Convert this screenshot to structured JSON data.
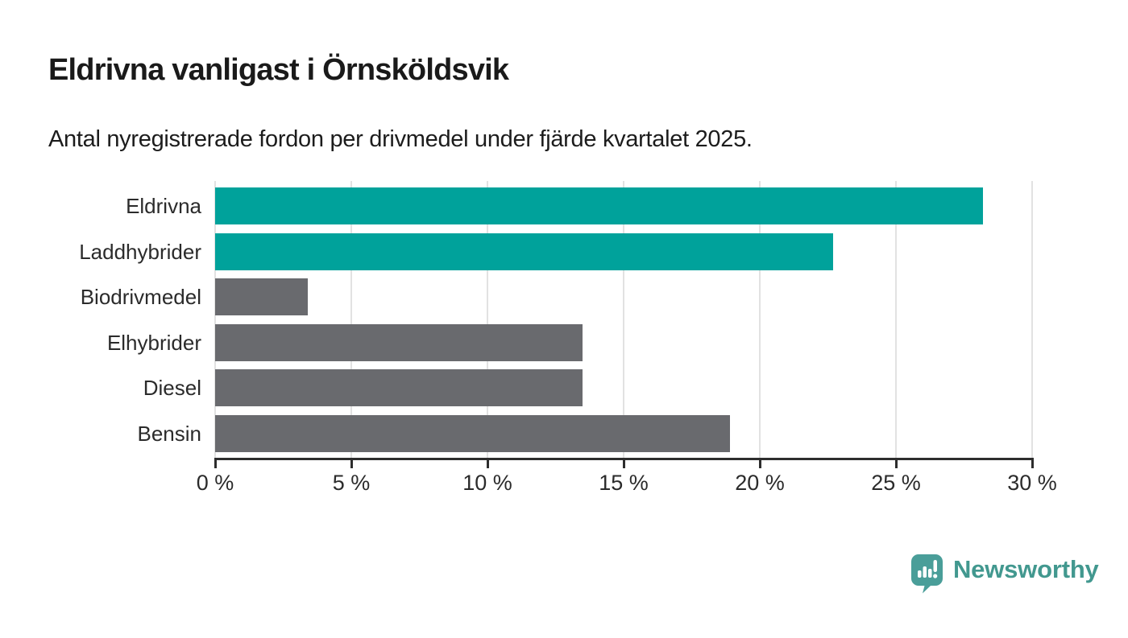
{
  "header": {
    "title": "Eldrivna vanligast i Örnsköldsvik",
    "subtitle": "Antal nyregistrerade fordon per drivmedel under fjärde kvartalet 2025."
  },
  "chart_data": {
    "type": "bar",
    "orientation": "horizontal",
    "title": "Eldrivna vanligast i Örnsköldsvik",
    "subtitle": "Antal nyregistrerade fordon per drivmedel under fjärde kvartalet 2025.",
    "categories": [
      "Eldrivna",
      "Laddhybrider",
      "Biodrivmedel",
      "Elhybrider",
      "Diesel",
      "Bensin"
    ],
    "values": [
      28.2,
      22.7,
      3.4,
      13.5,
      13.5,
      18.9
    ],
    "unit": "%",
    "xlim": [
      0,
      30
    ],
    "x_tick_values": [
      0,
      5,
      10,
      15,
      20,
      25,
      30
    ],
    "x_tick_labels": [
      "0 %",
      "5 %",
      "10 %",
      "15 %",
      "20 %",
      "25 %",
      "30 %"
    ],
    "grid": true,
    "legend": "none",
    "bar_colors": [
      "#00a29b",
      "#00a29b",
      "#696a6e",
      "#696a6e",
      "#696a6e",
      "#696a6e"
    ],
    "highlight_color": "#00a29b",
    "default_color": "#696a6e",
    "gridline_color": "#e2e2e2",
    "axis_color": "#2d2d2d"
  },
  "branding": {
    "logo_text": "Newsworthy",
    "logo_color": "#42988f",
    "logo_icon": "newsworthy-speech-bubble-chart-icon"
  }
}
